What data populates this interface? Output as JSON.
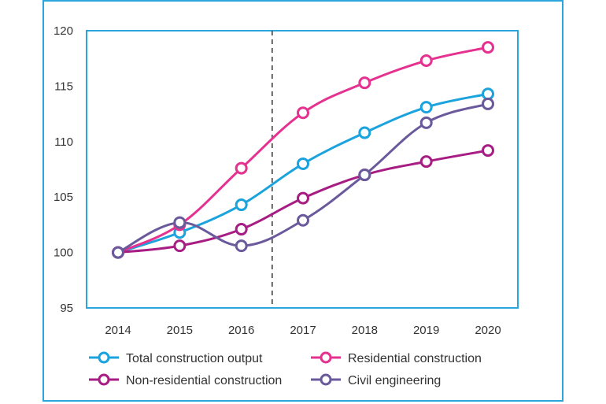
{
  "chart_data": {
    "type": "line",
    "title": "",
    "xlabel": "",
    "ylabel": "",
    "categories": [
      "2014",
      "2015",
      "2016",
      "2017",
      "2018",
      "2019",
      "2020"
    ],
    "ylim": [
      95,
      120
    ],
    "yticks": [
      "120",
      "115",
      "110",
      "105",
      "100",
      "95"
    ],
    "grid": false,
    "legend_position": "bottom",
    "divider_between": [
      "2016",
      "2017"
    ],
    "series": [
      {
        "name": "Total construction output",
        "color": "#1ba3dd",
        "values": [
          100,
          101.8,
          104.3,
          108,
          110.8,
          113.1,
          114.3
        ]
      },
      {
        "name": "Residential construction",
        "color": "#e5318f",
        "values": [
          100,
          102.5,
          107.6,
          112.6,
          115.3,
          117.3,
          118.5
        ]
      },
      {
        "name": "Non-residential construction",
        "color": "#a71d83",
        "values": [
          100,
          100.6,
          102.1,
          104.9,
          107,
          108.2,
          109.2
        ]
      },
      {
        "name": "Civil engineering",
        "color": "#6a5a9c",
        "values": [
          100,
          102.7,
          100.6,
          102.9,
          107,
          111.7,
          113.4
        ]
      }
    ]
  }
}
